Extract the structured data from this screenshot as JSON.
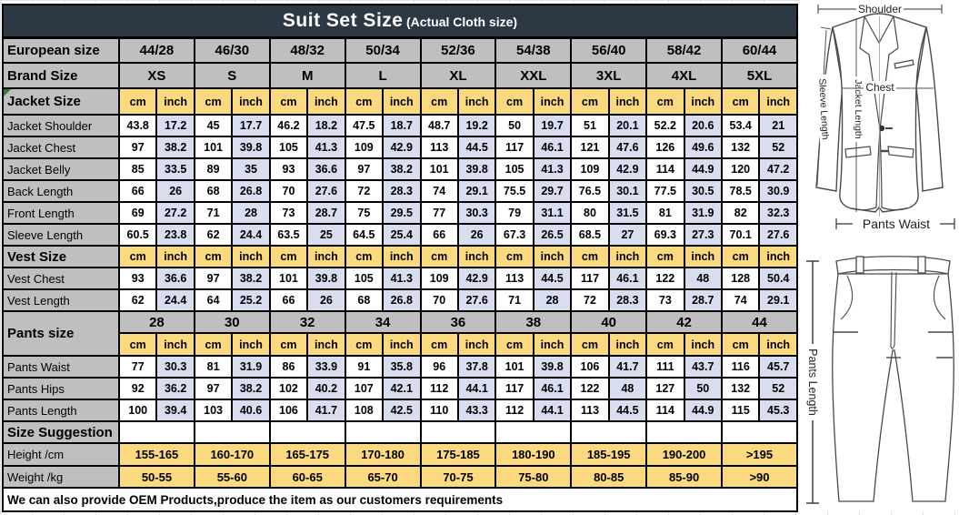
{
  "title": {
    "main": "Suit Set Size",
    "sub": "(Actual Cloth size)"
  },
  "colors": {
    "title_bar": "#2d3845",
    "header_gray": "#bfbfbf",
    "unit_yellow": "#fbd97e",
    "inch_lavender": "#d8def0",
    "border": "#000000",
    "title_text": "#ffffff"
  },
  "table": {
    "unit_cm": "cm",
    "unit_inch": "inch",
    "european": {
      "label": "European size",
      "values": [
        "44/28",
        "46/30",
        "48/32",
        "50/34",
        "52/36",
        "54/38",
        "56/40",
        "58/42",
        "60/44"
      ]
    },
    "brand": {
      "label": "Brand Size",
      "values": [
        "XS",
        "S",
        "M",
        "L",
        "XL",
        "XXL",
        "3XL",
        "4XL",
        "5XL"
      ]
    },
    "sections": [
      {
        "label": "Jacket Size",
        "rows": [
          {
            "label": "Jacket Shoulder",
            "values": [
              "43.8",
              "17.2",
              "45",
              "17.7",
              "46.2",
              "18.2",
              "47.5",
              "18.7",
              "48.7",
              "19.2",
              "50",
              "19.7",
              "51",
              "20.1",
              "52.2",
              "20.6",
              "53.4",
              "21"
            ]
          },
          {
            "label": "Jacket Chest",
            "values": [
              "97",
              "38.2",
              "101",
              "39.8",
              "105",
              "41.3",
              "109",
              "42.9",
              "113",
              "44.5",
              "117",
              "46.1",
              "121",
              "47.6",
              "126",
              "49.6",
              "132",
              "52"
            ]
          },
          {
            "label": "Jacket Belly",
            "values": [
              "85",
              "33.5",
              "89",
              "35",
              "93",
              "36.6",
              "97",
              "38.2",
              "101",
              "39.8",
              "105",
              "41.3",
              "109",
              "42.9",
              "114",
              "44.9",
              "120",
              "47.2"
            ]
          },
          {
            "label": "Back Length",
            "values": [
              "66",
              "26",
              "68",
              "26.8",
              "70",
              "27.6",
              "72",
              "28.3",
              "74",
              "29.1",
              "75.5",
              "29.7",
              "76.5",
              "30.1",
              "77.5",
              "30.5",
              "78.5",
              "30.9"
            ]
          },
          {
            "label": "Front Length",
            "values": [
              "69",
              "27.2",
              "71",
              "28",
              "73",
              "28.7",
              "75",
              "29.5",
              "77",
              "30.3",
              "79",
              "31.1",
              "80",
              "31.5",
              "81",
              "31.9",
              "82",
              "32.3"
            ]
          },
          {
            "label": "Sleeve Length",
            "values": [
              "60.5",
              "23.8",
              "62",
              "24.4",
              "63.5",
              "25",
              "64.5",
              "25.4",
              "66",
              "26",
              "67.3",
              "26.5",
              "68.5",
              "27",
              "69.3",
              "27.3",
              "70.1",
              "27.6"
            ]
          }
        ]
      },
      {
        "label": "Vest Size",
        "rows": [
          {
            "label": "Vest Chest",
            "values": [
              "93",
              "36.6",
              "97",
              "38.2",
              "101",
              "39.8",
              "105",
              "41.3",
              "109",
              "42.9",
              "113",
              "44.5",
              "117",
              "46.1",
              "122",
              "48",
              "128",
              "50.4"
            ]
          },
          {
            "label": "Vest Length",
            "values": [
              "62",
              "24.4",
              "64",
              "25.2",
              "66",
              "26",
              "68",
              "26.8",
              "70",
              "27.6",
              "71",
              "28",
              "72",
              "28.3",
              "73",
              "28.7",
              "74",
              "29.1"
            ]
          }
        ]
      }
    ],
    "pants": {
      "label": "Pants size",
      "sizes": [
        "28",
        "30",
        "32",
        "34",
        "36",
        "38",
        "40",
        "42",
        "44"
      ],
      "rows": [
        {
          "label": "Pants Waist",
          "values": [
            "77",
            "30.3",
            "81",
            "31.9",
            "86",
            "33.9",
            "91",
            "35.8",
            "96",
            "37.8",
            "101",
            "39.8",
            "106",
            "41.7",
            "111",
            "43.7",
            "116",
            "45.7"
          ]
        },
        {
          "label": "Pants Hips",
          "values": [
            "92",
            "36.2",
            "97",
            "38.2",
            "102",
            "40.2",
            "107",
            "42.1",
            "112",
            "44.1",
            "117",
            "46.1",
            "122",
            "48",
            "127",
            "50",
            "132",
            "52"
          ]
        },
        {
          "label": "Pants Length",
          "values": [
            "100",
            "39.4",
            "103",
            "40.6",
            "106",
            "41.7",
            "108",
            "42.5",
            "110",
            "43.3",
            "112",
            "44.1",
            "113",
            "44.5",
            "114",
            "44.9",
            "115",
            "45.3"
          ]
        }
      ]
    },
    "suggestion": {
      "label": "Size Suggestion",
      "rows": [
        {
          "label": "Height /cm",
          "values": [
            "155-165",
            "160-170",
            "165-175",
            "170-180",
            "175-185",
            "180-190",
            "185-195",
            "190-200",
            ">195"
          ]
        },
        {
          "label": "Weight /kg",
          "values": [
            "50-55",
            "55-60",
            "60-65",
            "65-70",
            "70-75",
            "75-80",
            "80-85",
            "85-90",
            ">90"
          ]
        }
      ]
    },
    "footer": "We can also provide OEM Products,produce the item as our customers requirements"
  },
  "diagram": {
    "shoulder": "Shoulder",
    "chest": "Chest",
    "jacket_length": "Jacket Length",
    "sleeve_length": "Sleeve Length",
    "pants_waist": "Pants Waist",
    "pants_length": "Pants Length"
  }
}
